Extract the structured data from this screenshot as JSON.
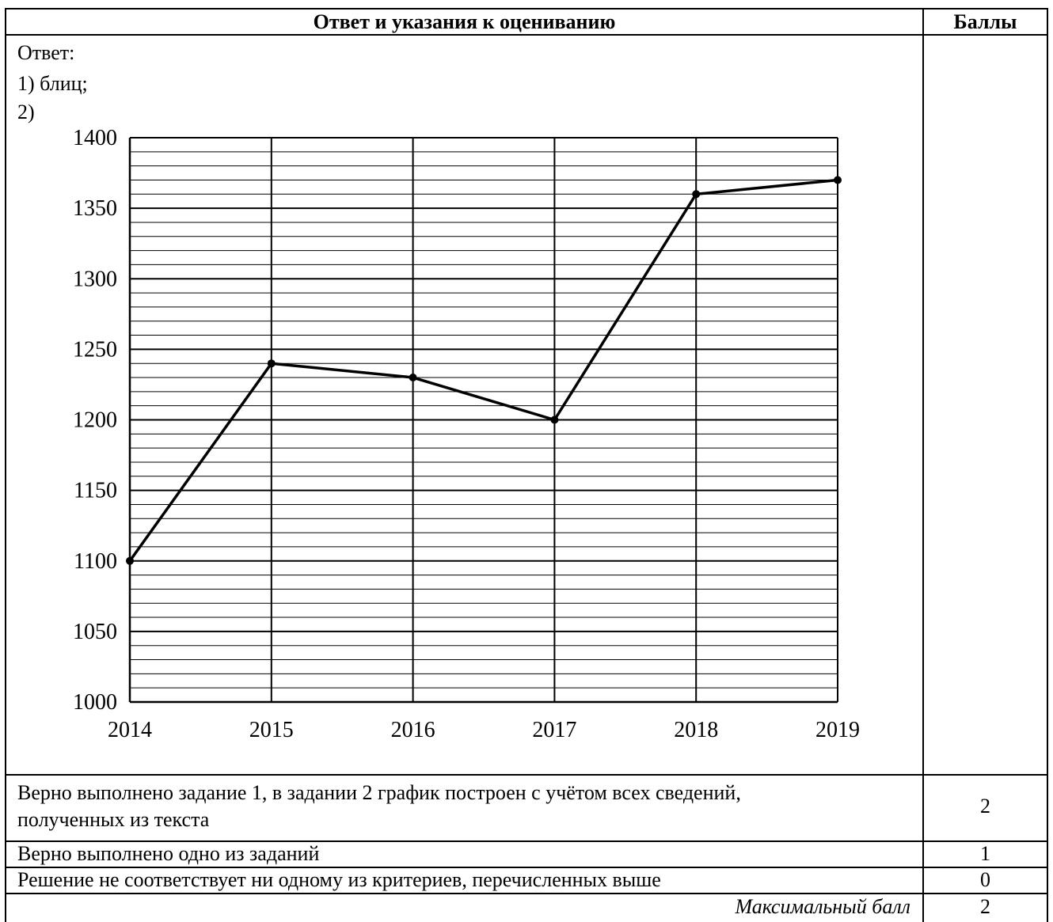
{
  "header": {
    "answer_col": "Ответ и указания к оцениванию",
    "points_col": "Баллы"
  },
  "answer": {
    "label": "Ответ:",
    "item1": "1) блиц;",
    "item2": "2)"
  },
  "chart_data": {
    "type": "line",
    "x": [
      2014,
      2015,
      2016,
      2017,
      2018,
      2019
    ],
    "values": [
      1100,
      1240,
      1230,
      1200,
      1360,
      1370
    ],
    "xlim": [
      2014,
      2019
    ],
    "ylim": [
      1000,
      1400
    ],
    "y_ticks": [
      1000,
      1050,
      1100,
      1150,
      1200,
      1250,
      1300,
      1350,
      1400
    ],
    "y_minor_step": 10,
    "grid": true,
    "title": "",
    "xlabel": "",
    "ylabel": ""
  },
  "criteria": [
    {
      "line1": "Верно выполнено задание 1, в задании 2 график построен с учётом всех сведений,",
      "line2": "полученных из текста",
      "points": "2"
    },
    {
      "text": "Верно выполнено одно из заданий",
      "points": "1"
    },
    {
      "text": "Решение не соответствует ни одному из критериев, перечисленных выше",
      "points": "0"
    }
  ],
  "max": {
    "label": "Максимальный балл",
    "points": "2"
  }
}
